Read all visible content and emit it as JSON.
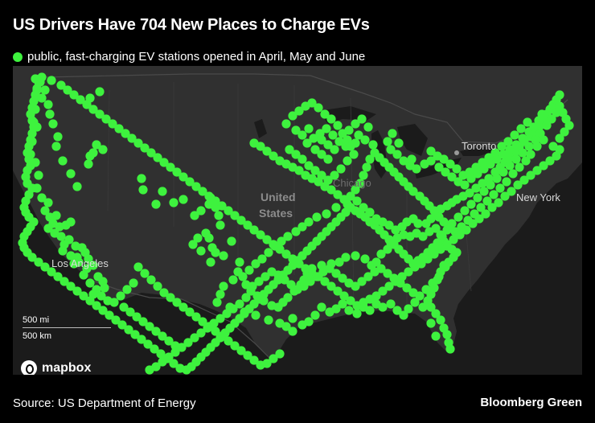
{
  "title": "US Drivers Have 704 New Places to Charge EVs",
  "legend": {
    "label": "public, fast-charging EV stations opened in April, May and June"
  },
  "colors": {
    "station": "#3ef23e",
    "land": "#303030",
    "water": "#1b1b1b",
    "map_label": "#8c8c8c",
    "city_label": "#d9d9d9"
  },
  "map": {
    "provider_label": "mapbox",
    "labels": {
      "country": "United States",
      "country_line1": "United",
      "country_line2": "States",
      "toronto": "Toronto",
      "new_york": "New York",
      "los_angeles": "Los Angeles",
      "chicago": "Chicago"
    },
    "scale": {
      "miles": "500 mi",
      "km": "500 km"
    }
  },
  "source": "Source: US Department of Energy",
  "publisher": "Bloomberg Green"
}
